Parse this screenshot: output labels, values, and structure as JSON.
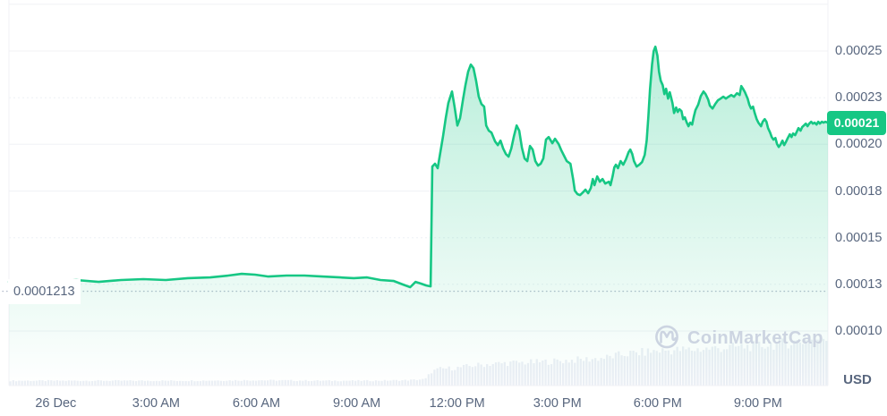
{
  "watermark": {
    "text": "CoinMarketCap"
  },
  "open_price_label": "0.0001213",
  "current_price_badge": "0.00021",
  "usd_label": "USD",
  "colors": {
    "accent_green": "#16c784",
    "badge_bg": "#16c784",
    "badge_text": "#ffffff",
    "axis_text": "#58667e",
    "grid": "#f0f2f6",
    "grid_minor": "#eef1f5",
    "dotted_open_line": "#b8c0cf",
    "volume_bar": "#ebeff5",
    "watermark": "#ccd4e1",
    "background": "#ffffff"
  },
  "chart_data": {
    "type": "area",
    "title": "Cryptocurrency price chart (1 day)",
    "xlabel": "",
    "ylabel": "USD",
    "legend": "none",
    "grid": true,
    "x_axis": {
      "t_min": -1.4,
      "t_max": 23.09,
      "unit": "hours from 26 Dec 00:00",
      "ticks": [
        {
          "t": 0,
          "label": "26 Dec"
        },
        {
          "t": 3,
          "label": "3:00 AM"
        },
        {
          "t": 6,
          "label": "6:00 AM"
        },
        {
          "t": 9,
          "label": "9:00 AM"
        },
        {
          "t": 12,
          "label": "12:00 PM"
        },
        {
          "t": 15,
          "label": "3:00 PM"
        },
        {
          "t": 18,
          "label": "6:00 PM"
        },
        {
          "t": 21,
          "label": "9:00 PM"
        }
      ]
    },
    "y_axis": {
      "v_min": 0.0001,
      "v_max": 0.00025,
      "labels": [
        {
          "v": 0.00025,
          "text": "0.00025"
        },
        {
          "v": 0.000225,
          "text": "0.00023"
        },
        {
          "v": 0.0002,
          "text": "0.00020"
        },
        {
          "v": 0.000175,
          "text": "0.00018"
        },
        {
          "v": 0.00015,
          "text": "0.00015"
        },
        {
          "v": 0.000125,
          "text": "0.00013"
        },
        {
          "v": 0.0001,
          "text": "0.00010"
        }
      ],
      "gridlines": [
        {
          "v": 0.000275,
          "style": "solid"
        },
        {
          "v": 0.00025,
          "style": "solid"
        },
        {
          "v": 0.000225,
          "style": "dashed"
        },
        {
          "v": 0.0002,
          "style": "solid"
        },
        {
          "v": 0.000175,
          "style": "solid"
        },
        {
          "v": 0.00015,
          "style": "dashed"
        },
        {
          "v": 0.000125,
          "style": "dashed"
        },
        {
          "v": 0.0001,
          "style": "solid"
        }
      ]
    },
    "open_price": 0.0001213,
    "last_price": 0.0002116,
    "price_series": [
      [
        -1.4,
        0.0001263
      ],
      [
        -0.86,
        0.0001268
      ],
      [
        -0.2,
        0.0001263
      ],
      [
        0.61,
        0.0001273
      ],
      [
        1.28,
        0.0001263
      ],
      [
        1.95,
        0.0001273
      ],
      [
        2.62,
        0.0001278
      ],
      [
        3.29,
        0.0001273
      ],
      [
        3.95,
        0.0001283
      ],
      [
        4.62,
        0.0001287
      ],
      [
        5.16,
        0.0001297
      ],
      [
        5.56,
        0.0001306
      ],
      [
        5.96,
        0.0001302
      ],
      [
        6.36,
        0.0001292
      ],
      [
        6.9,
        0.0001297
      ],
      [
        7.44,
        0.0001297
      ],
      [
        7.97,
        0.0001292
      ],
      [
        8.51,
        0.0001287
      ],
      [
        8.91,
        0.0001283
      ],
      [
        9.31,
        0.0001287
      ],
      [
        9.71,
        0.0001273
      ],
      [
        10.11,
        0.0001268
      ],
      [
        10.38,
        0.0001249
      ],
      [
        10.6,
        0.0001235
      ],
      [
        10.76,
        0.0001263
      ],
      [
        10.92,
        0.0001254
      ],
      [
        11.08,
        0.0001244
      ],
      [
        11.21,
        0.0001239
      ],
      [
        11.26,
        0.0001881
      ],
      [
        11.34,
        0.0001896
      ],
      [
        11.42,
        0.0001872
      ],
      [
        11.5,
        0.0001958
      ],
      [
        11.58,
        0.0002044
      ],
      [
        11.66,
        0.000214
      ],
      [
        11.74,
        0.0002221
      ],
      [
        11.85,
        0.0002283
      ],
      [
        11.93,
        0.0002197
      ],
      [
        12.01,
        0.0002101
      ],
      [
        12.09,
        0.000214
      ],
      [
        12.17,
        0.0002231
      ],
      [
        12.25,
        0.0002317
      ],
      [
        12.33,
        0.0002389
      ],
      [
        12.41,
        0.0002427
      ],
      [
        12.49,
        0.0002408
      ],
      [
        12.57,
        0.0002341
      ],
      [
        12.65,
        0.0002255
      ],
      [
        12.73,
        0.0002216
      ],
      [
        12.81,
        0.0002202
      ],
      [
        12.87,
        0.0002101
      ],
      [
        12.95,
        0.0002073
      ],
      [
        13.03,
        0.0002063
      ],
      [
        13.14,
        0.0002015
      ],
      [
        13.22,
        0.0001996
      ],
      [
        13.3,
        0.000202
      ],
      [
        13.38,
        0.0001977
      ],
      [
        13.46,
        0.0001948
      ],
      [
        13.54,
        0.0001934
      ],
      [
        13.62,
        0.0001977
      ],
      [
        13.7,
        0.0002044
      ],
      [
        13.78,
        0.0002101
      ],
      [
        13.86,
        0.0002073
      ],
      [
        13.94,
        0.0001982
      ],
      [
        14.02,
        0.0001924
      ],
      [
        14.1,
        0.000191
      ],
      [
        14.18,
        0.0001991
      ],
      [
        14.26,
        0.0001972
      ],
      [
        14.34,
        0.000191
      ],
      [
        14.42,
        0.0001886
      ],
      [
        14.5,
        0.0001896
      ],
      [
        14.58,
        0.0001924
      ],
      [
        14.66,
        0.0002025
      ],
      [
        14.74,
        0.0002039
      ],
      [
        14.85,
        0.0002006
      ],
      [
        14.93,
        0.000203
      ],
      [
        15.04,
        0.0002001
      ],
      [
        15.12,
        0.0001967
      ],
      [
        15.2,
        0.0001939
      ],
      [
        15.28,
        0.000191
      ],
      [
        15.39,
        0.0001896
      ],
      [
        15.47,
        0.0001814
      ],
      [
        15.52,
        0.0001752
      ],
      [
        15.6,
        0.0001733
      ],
      [
        15.68,
        0.0001728
      ],
      [
        15.76,
        0.0001742
      ],
      [
        15.84,
        0.0001757
      ],
      [
        15.92,
        0.0001738
      ],
      [
        16.0,
        0.0001766
      ],
      [
        16.06,
        0.0001814
      ],
      [
        16.11,
        0.0001781
      ],
      [
        16.19,
        0.0001828
      ],
      [
        16.27,
        0.00018
      ],
      [
        16.35,
        0.0001814
      ],
      [
        16.43,
        0.000179
      ],
      [
        16.54,
        0.00018
      ],
      [
        16.59,
        0.0001781
      ],
      [
        16.65,
        0.0001828
      ],
      [
        16.7,
        0.0001876
      ],
      [
        16.75,
        0.0001891
      ],
      [
        16.81,
        0.0001872
      ],
      [
        16.89,
        0.000191
      ],
      [
        16.97,
        0.0001891
      ],
      [
        17.05,
        0.0001919
      ],
      [
        17.13,
        0.0001958
      ],
      [
        17.18,
        0.0001972
      ],
      [
        17.24,
        0.0001948
      ],
      [
        17.29,
        0.000191
      ],
      [
        17.37,
        0.0001881
      ],
      [
        17.45,
        0.0001891
      ],
      [
        17.53,
        0.0001905
      ],
      [
        17.61,
        0.0001943
      ],
      [
        17.67,
        0.000202
      ],
      [
        17.72,
        0.0002149
      ],
      [
        17.77,
        0.0002293
      ],
      [
        17.83,
        0.0002427
      ],
      [
        17.88,
        0.0002499
      ],
      [
        17.93,
        0.0002523
      ],
      [
        17.99,
        0.0002475
      ],
      [
        18.04,
        0.0002389
      ],
      [
        18.09,
        0.0002341
      ],
      [
        18.15,
        0.0002317
      ],
      [
        18.2,
        0.0002269
      ],
      [
        18.25,
        0.0002298
      ],
      [
        18.31,
        0.0002245
      ],
      [
        18.36,
        0.0002279
      ],
      [
        18.44,
        0.0002221
      ],
      [
        18.49,
        0.0002168
      ],
      [
        18.55,
        0.0002197
      ],
      [
        18.6,
        0.0002173
      ],
      [
        18.65,
        0.0002188
      ],
      [
        18.71,
        0.0002178
      ],
      [
        18.76,
        0.0002135
      ],
      [
        18.81,
        0.0002145
      ],
      [
        18.87,
        0.0002116
      ],
      [
        18.92,
        0.0002097
      ],
      [
        18.97,
        0.0002116
      ],
      [
        19.03,
        0.0002106
      ],
      [
        19.08,
        0.0002149
      ],
      [
        19.13,
        0.0002183
      ],
      [
        19.21,
        0.0002212
      ],
      [
        19.29,
        0.0002259
      ],
      [
        19.37,
        0.0002283
      ],
      [
        19.43,
        0.0002269
      ],
      [
        19.51,
        0.000224
      ],
      [
        19.56,
        0.0002207
      ],
      [
        19.64,
        0.0002192
      ],
      [
        19.72,
        0.0002216
      ],
      [
        19.8,
        0.0002236
      ],
      [
        19.88,
        0.0002245
      ],
      [
        19.96,
        0.0002255
      ],
      [
        20.04,
        0.0002245
      ],
      [
        20.12,
        0.0002255
      ],
      [
        20.2,
        0.0002264
      ],
      [
        20.28,
        0.0002255
      ],
      [
        20.37,
        0.0002274
      ],
      [
        20.45,
        0.0002264
      ],
      [
        20.5,
        0.0002312
      ],
      [
        20.55,
        0.0002298
      ],
      [
        20.61,
        0.0002279
      ],
      [
        20.69,
        0.0002245
      ],
      [
        20.74,
        0.0002212
      ],
      [
        20.79,
        0.0002192
      ],
      [
        20.85,
        0.0002202
      ],
      [
        20.9,
        0.0002168
      ],
      [
        20.96,
        0.0002135
      ],
      [
        21.01,
        0.0002116
      ],
      [
        21.09,
        0.0002097
      ],
      [
        21.14,
        0.0002121
      ],
      [
        21.2,
        0.0002135
      ],
      [
        21.25,
        0.0002121
      ],
      [
        21.3,
        0.0002087
      ],
      [
        21.36,
        0.0002063
      ],
      [
        21.41,
        0.0002039
      ],
      [
        21.46,
        0.0002025
      ],
      [
        21.52,
        0.0002034
      ],
      [
        21.57,
        0.0002001
      ],
      [
        21.62,
        0.0001986
      ],
      [
        21.68,
        0.0002001
      ],
      [
        21.73,
        0.000202
      ],
      [
        21.78,
        0.0001996
      ],
      [
        21.84,
        0.0002015
      ],
      [
        21.89,
        0.0002034
      ],
      [
        21.95,
        0.0002054
      ],
      [
        22.0,
        0.0002039
      ],
      [
        22.05,
        0.0002058
      ],
      [
        22.11,
        0.0002049
      ],
      [
        22.16,
        0.0002068
      ],
      [
        22.21,
        0.0002087
      ],
      [
        22.27,
        0.0002073
      ],
      [
        22.32,
        0.0002092
      ],
      [
        22.37,
        0.0002101
      ],
      [
        22.43,
        0.0002111
      ],
      [
        22.48,
        0.0002097
      ],
      [
        22.53,
        0.0002111
      ],
      [
        22.59,
        0.0002121
      ],
      [
        22.64,
        0.0002111
      ],
      [
        22.69,
        0.0002116
      ],
      [
        22.75,
        0.0002106
      ],
      [
        22.8,
        0.0002121
      ],
      [
        22.85,
        0.0002111
      ],
      [
        22.91,
        0.0002121
      ],
      [
        22.96,
        0.0002116
      ],
      [
        23.01,
        0.0002121
      ],
      [
        23.09,
        0.0002116
      ]
    ],
    "volume_profile": [
      [
        -1.4,
        0.09
      ],
      [
        0,
        0.09
      ],
      [
        2,
        0.09
      ],
      [
        4,
        0.09
      ],
      [
        6,
        0.1
      ],
      [
        8,
        0.09
      ],
      [
        9.5,
        0.09
      ],
      [
        10.5,
        0.1
      ],
      [
        11.05,
        0.12
      ],
      [
        11.25,
        0.28
      ],
      [
        11.5,
        0.33
      ],
      [
        12,
        0.35
      ],
      [
        12.5,
        0.4
      ],
      [
        13,
        0.43
      ],
      [
        13.5,
        0.45
      ],
      [
        14,
        0.46
      ],
      [
        14.5,
        0.47
      ],
      [
        15,
        0.49
      ],
      [
        15.5,
        0.51
      ],
      [
        16,
        0.53
      ],
      [
        16.5,
        0.56
      ],
      [
        17,
        0.63
      ],
      [
        17.5,
        0.66
      ],
      [
        18,
        0.7
      ],
      [
        18.5,
        0.71
      ],
      [
        19,
        0.72
      ],
      [
        19.5,
        0.74
      ],
      [
        20,
        0.76
      ],
      [
        20.5,
        0.78
      ],
      [
        21,
        0.8
      ],
      [
        21.5,
        0.83
      ],
      [
        22,
        0.87
      ],
      [
        22.5,
        0.91
      ],
      [
        23.09,
        0.97
      ]
    ]
  }
}
